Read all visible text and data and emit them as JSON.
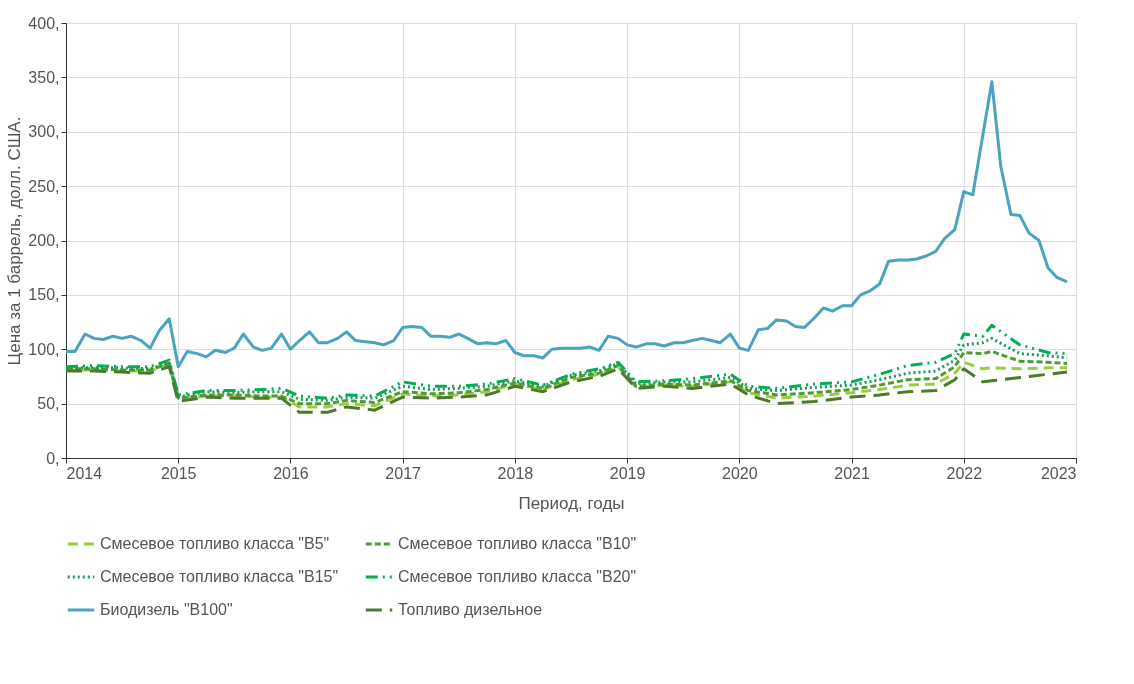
{
  "chart_data": {
    "type": "line",
    "xlabel": "Период, годы",
    "ylabel": "Цена за 1 баррель, долл. США.",
    "xlim": [
      2014,
      2023
    ],
    "xticks": [
      2014,
      2015,
      2016,
      2017,
      2018,
      2019,
      2020,
      2021,
      2022,
      2023
    ],
    "ylim": [
      0,
      400
    ],
    "yticks": [
      {
        "value": 0,
        "label": "0,"
      },
      {
        "value": 50,
        "label": "50,"
      },
      {
        "value": 100,
        "label": "100,"
      },
      {
        "value": 150,
        "label": "150,"
      },
      {
        "value": 200,
        "label": "200,"
      },
      {
        "value": 250,
        "label": "250,"
      },
      {
        "value": 300,
        "label": "300,"
      },
      {
        "value": 350,
        "label": "350,"
      },
      {
        "value": 400,
        "label": "400,"
      }
    ],
    "grid": true,
    "legend": "bottom",
    "marker": "none",
    "x": [
      2014,
      2014.25,
      2014.5,
      2014.75,
      2014.92,
      2015.0,
      2015.25,
      2015.5,
      2015.75,
      2015.92,
      2016.08,
      2016.33,
      2016.5,
      2016.75,
      2017.0,
      2017.25,
      2017.5,
      2017.75,
      2018.0,
      2018.25,
      2018.5,
      2018.75,
      2018.92,
      2019.08,
      2019.33,
      2019.58,
      2019.92,
      2020.08,
      2020.33,
      2020.67,
      2021.0,
      2021.25,
      2021.5,
      2021.75,
      2021.92,
      2022.0,
      2022.17,
      2022.25,
      2022.5,
      2022.75,
      2022.92
    ],
    "series": [
      {
        "name": "Смесевое топливо класса \"B5\"",
        "color": "#9acd3c",
        "line_style": "dashed",
        "values": [
          81,
          81,
          80,
          80,
          86,
          54,
          57,
          57,
          56,
          56,
          47,
          47,
          50,
          48,
          59,
          57,
          58,
          61,
          68,
          63,
          72,
          77,
          84,
          65,
          67,
          66,
          70,
          60,
          55,
          57,
          60,
          63,
          67,
          68,
          78,
          88,
          82,
          83,
          82,
          83,
          83
        ]
      },
      {
        "name": "Смесевое топливо класса \"B10\"",
        "color": "#4e9a33",
        "line_style": "dashed",
        "values": [
          82,
          82,
          81,
          81,
          87,
          55,
          58,
          58,
          57,
          57,
          50,
          50,
          53,
          51,
          61,
          59,
          60,
          63,
          69,
          64,
          74,
          78,
          85,
          66,
          68,
          67,
          71,
          62,
          58,
          60,
          63,
          67,
          72,
          73,
          84,
          97,
          96,
          98,
          89,
          88,
          87
        ]
      },
      {
        "name": "Смесевое топливо класса \"B15\"",
        "color": "#1a9a5a",
        "line_style": "dotted",
        "values": [
          83,
          83,
          83,
          82,
          88,
          56,
          61,
          60,
          61,
          61,
          54,
          53,
          56,
          55,
          66,
          63,
          64,
          66,
          71,
          66,
          76,
          80,
          87,
          68,
          70,
          70,
          74,
          64,
          62,
          65,
          67,
          72,
          78,
          80,
          90,
          104,
          106,
          110,
          96,
          94,
          92
        ]
      },
      {
        "name": "Смесевое топливо класса \"B20\"",
        "color": "#00b050",
        "line_style": "dashed",
        "values": [
          84,
          85,
          84,
          84,
          90,
          58,
          62,
          62,
          63,
          64,
          57,
          55,
          58,
          57,
          70,
          66,
          66,
          68,
          73,
          67,
          77,
          82,
          88,
          70,
          71,
          73,
          77,
          66,
          64,
          68,
          70,
          77,
          85,
          88,
          96,
          114,
          112,
          122,
          104,
          97,
          96
        ]
      },
      {
        "name": "Биодизель \"B100\"",
        "color": "#4aa3bf",
        "line_style": "solid",
        "x": [
          2014.0,
          2014.08,
          2014.17,
          2014.25,
          2014.33,
          2014.42,
          2014.5,
          2014.58,
          2014.67,
          2014.75,
          2014.83,
          2014.92,
          2015.0,
          2015.08,
          2015.17,
          2015.25,
          2015.33,
          2015.42,
          2015.5,
          2015.58,
          2015.67,
          2015.75,
          2015.83,
          2015.92,
          2016.0,
          2016.08,
          2016.17,
          2016.25,
          2016.33,
          2016.42,
          2016.5,
          2016.58,
          2016.67,
          2016.75,
          2016.83,
          2016.92,
          2017.0,
          2017.08,
          2017.17,
          2017.25,
          2017.33,
          2017.42,
          2017.5,
          2017.58,
          2017.67,
          2017.75,
          2017.83,
          2017.92,
          2018.0,
          2018.08,
          2018.17,
          2018.25,
          2018.33,
          2018.42,
          2018.5,
          2018.58,
          2018.67,
          2018.75,
          2018.83,
          2018.92,
          2019.0,
          2019.08,
          2019.17,
          2019.25,
          2019.33,
          2019.42,
          2019.5,
          2019.58,
          2019.67,
          2019.75,
          2019.83,
          2019.92,
          2020.0,
          2020.08,
          2020.17,
          2020.25,
          2020.33,
          2020.42,
          2020.5,
          2020.58,
          2020.67,
          2020.75,
          2020.83,
          2020.92,
          2021.0,
          2021.08,
          2021.17,
          2021.25,
          2021.33,
          2021.42,
          2021.5,
          2021.58,
          2021.67,
          2021.75,
          2021.83,
          2021.92,
          2022.0,
          2022.08,
          2022.25,
          2022.33,
          2022.42,
          2022.5,
          2022.58,
          2022.67,
          2022.75,
          2022.83,
          2022.92
        ],
        "values": [
          98,
          98,
          114,
          110,
          109,
          112,
          110,
          112,
          108,
          101,
          117,
          128,
          84,
          98,
          96,
          93,
          99,
          97,
          101,
          114,
          102,
          99,
          101,
          114,
          100,
          108,
          116,
          106,
          106,
          110,
          116,
          108,
          107,
          106,
          104,
          108,
          120,
          121,
          120,
          112,
          112,
          111,
          114,
          110,
          105,
          106,
          105,
          108,
          97,
          94,
          94,
          92,
          100,
          101,
          101,
          101,
          102,
          99,
          112,
          110,
          104,
          102,
          105,
          105,
          103,
          106,
          106,
          108,
          110,
          108,
          106,
          114,
          101,
          99,
          118,
          119,
          127,
          126,
          121,
          120,
          129,
          138,
          135,
          140,
          140,
          150,
          154,
          160,
          181,
          182,
          182,
          183,
          186,
          190,
          202,
          210,
          245,
          242,
          346,
          268,
          224,
          223,
          207,
          200,
          175,
          166,
          162
        ]
      },
      {
        "name": "Топливо дизельное",
        "color": "#4a7a2a",
        "line_style": "dashed",
        "values": [
          80,
          80,
          79,
          78,
          84,
          52,
          56,
          55,
          55,
          55,
          42,
          42,
          47,
          44,
          56,
          55,
          56,
          58,
          66,
          61,
          70,
          75,
          82,
          64,
          66,
          64,
          68,
          58,
          50,
          52,
          56,
          58,
          61,
          62,
          72,
          82,
          70,
          71,
          74,
          77,
          79
        ]
      }
    ]
  }
}
